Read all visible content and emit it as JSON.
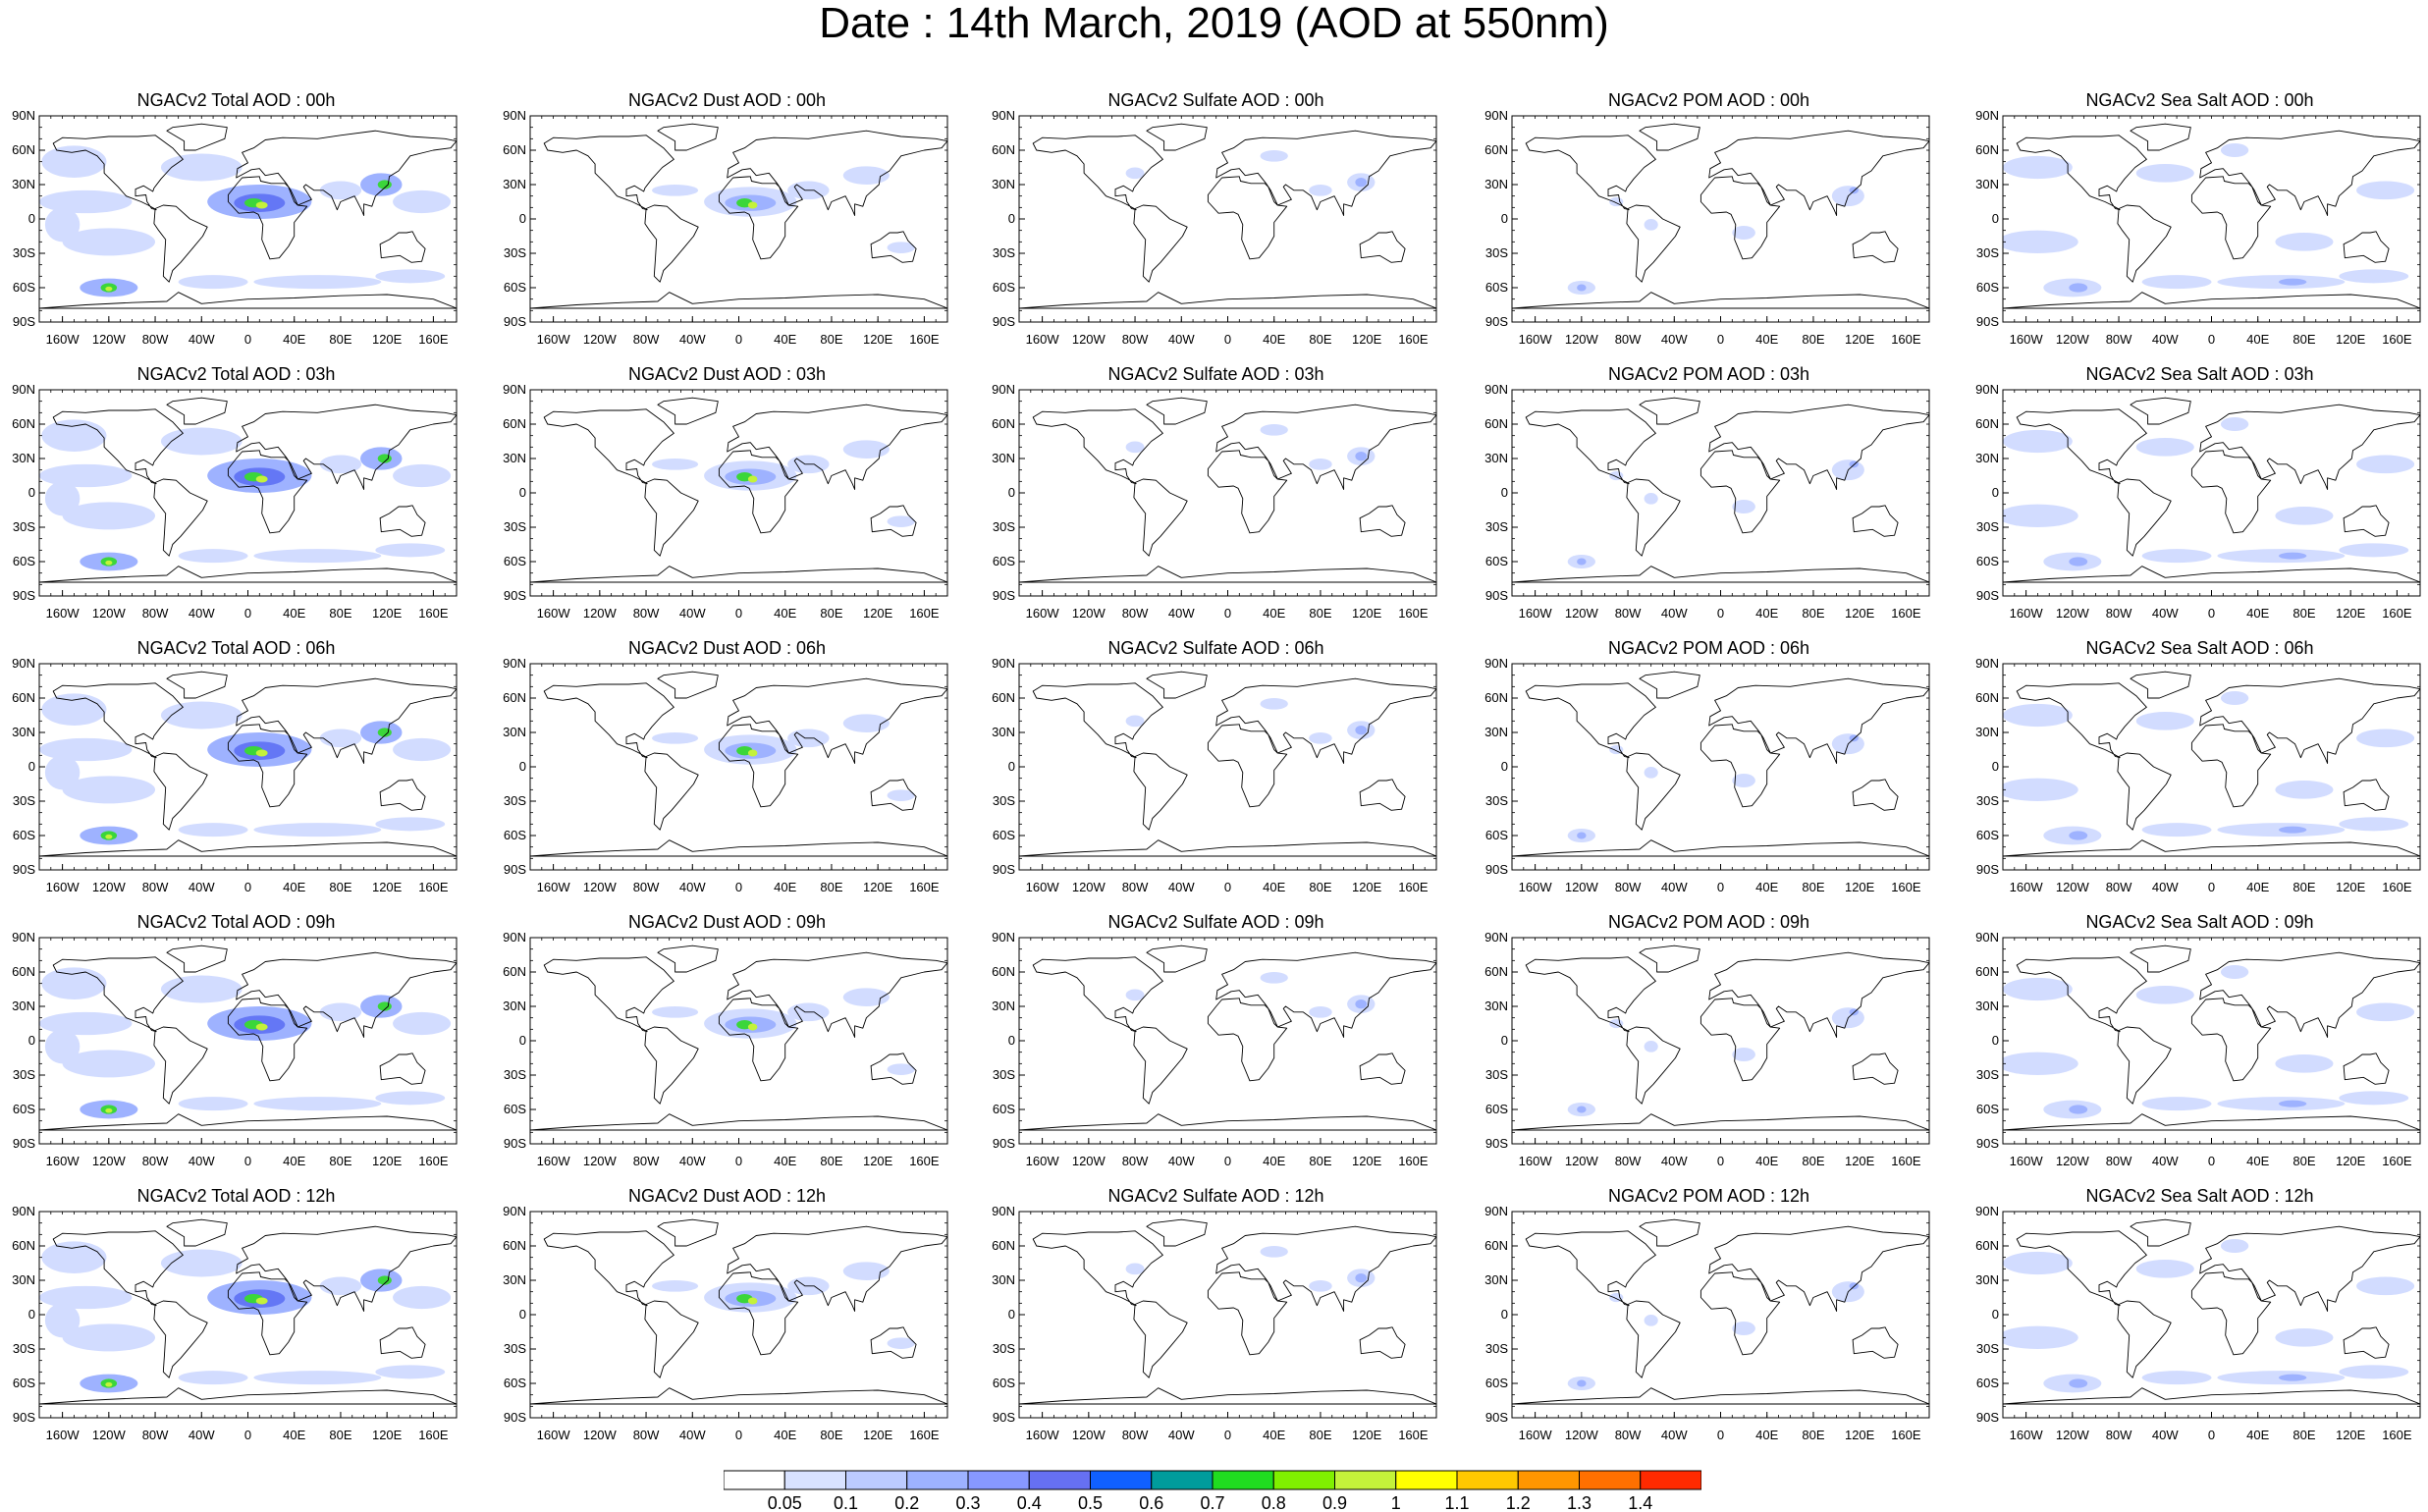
{
  "title": "Date : 14th March, 2019 (AOD at 550nm)",
  "colors": {
    "land_outline": "#000000",
    "low": "#d2dcff",
    "mid": "#9eb2ff",
    "high": "#6477f5",
    "dust_core": "#3bd63a",
    "dust_peak": "#c4f23a"
  },
  "chart_data": {
    "type": "heatmap",
    "layout": "grid",
    "rows": 5,
    "columns": 5,
    "variable": "AOD at 550nm",
    "lon_ticks": [
      "160W",
      "120W",
      "80W",
      "40W",
      "0",
      "40E",
      "80E",
      "120E",
      "160E"
    ],
    "lat_ticks": [
      "90N",
      "60N",
      "30N",
      "0",
      "30S",
      "60S",
      "90S"
    ],
    "lon_range": [
      -180,
      180
    ],
    "lat_range": [
      -90,
      90
    ],
    "panels": [
      {
        "title": "NGACv2 Total AOD : 00h",
        "field": "total",
        "hour": "00h"
      },
      {
        "title": "NGACv2 Dust AOD : 00h",
        "field": "dust",
        "hour": "00h"
      },
      {
        "title": "NGACv2 Sulfate AOD : 00h",
        "field": "sulfate",
        "hour": "00h"
      },
      {
        "title": "NGACv2 POM AOD : 00h",
        "field": "pom",
        "hour": "00h"
      },
      {
        "title": "NGACv2 Sea Salt AOD : 00h",
        "field": "seasalt",
        "hour": "00h"
      },
      {
        "title": "NGACv2 Total AOD : 03h",
        "field": "total",
        "hour": "03h"
      },
      {
        "title": "NGACv2 Dust AOD : 03h",
        "field": "dust",
        "hour": "03h"
      },
      {
        "title": "NGACv2 Sulfate AOD : 03h",
        "field": "sulfate",
        "hour": "03h"
      },
      {
        "title": "NGACv2 POM AOD : 03h",
        "field": "pom",
        "hour": "03h"
      },
      {
        "title": "NGACv2 Sea Salt AOD : 03h",
        "field": "seasalt",
        "hour": "03h"
      },
      {
        "title": "NGACv2 Total AOD : 06h",
        "field": "total",
        "hour": "06h"
      },
      {
        "title": "NGACv2 Dust AOD : 06h",
        "field": "dust",
        "hour": "06h"
      },
      {
        "title": "NGACv2 Sulfate AOD : 06h",
        "field": "sulfate",
        "hour": "06h"
      },
      {
        "title": "NGACv2 POM AOD : 06h",
        "field": "pom",
        "hour": "06h"
      },
      {
        "title": "NGACv2 Sea Salt AOD : 06h",
        "field": "seasalt",
        "hour": "06h"
      },
      {
        "title": "NGACv2 Total AOD : 09h",
        "field": "total",
        "hour": "09h"
      },
      {
        "title": "NGACv2 Dust AOD : 09h",
        "field": "dust",
        "hour": "09h"
      },
      {
        "title": "NGACv2 Sulfate AOD : 09h",
        "field": "sulfate",
        "hour": "09h"
      },
      {
        "title": "NGACv2 POM AOD : 09h",
        "field": "pom",
        "hour": "09h"
      },
      {
        "title": "NGACv2 Sea Salt  AOD : 09h",
        "field": "seasalt",
        "hour": "09h"
      },
      {
        "title": "NGACv2 Total AOD  : 12h",
        "field": "total",
        "hour": "12h"
      },
      {
        "title": "NGACv2 Dust AOD : 12h",
        "field": "dust",
        "hour": "12h"
      },
      {
        "title": "NGACv2 Sulfate AOD : 12h",
        "field": "sulfate",
        "hour": "12h"
      },
      {
        "title": "NGACv2 POM  AOD : 12h",
        "field": "pom",
        "hour": "12h"
      },
      {
        "title": "NGACv2 Sea Salt AOD : 12h",
        "field": "seasalt",
        "hour": "12h"
      }
    ],
    "colorbar": {
      "levels": [
        "0.05",
        "0.1",
        "0.2",
        "0.3",
        "0.4",
        "0.5",
        "0.6",
        "0.7",
        "0.8",
        "0.9",
        "1",
        "1.1",
        "1.2",
        "1.3",
        "1.4"
      ],
      "colors": [
        "#ffffff",
        "#d8e2ff",
        "#bccbff",
        "#9db2ff",
        "#8798ff",
        "#6670f2",
        "#1060ff",
        "#009c9c",
        "#20dc20",
        "#80f000",
        "#c4f23a",
        "#ffff00",
        "#ffc800",
        "#ff9600",
        "#ff7000",
        "#ff2a00"
      ]
    }
  }
}
